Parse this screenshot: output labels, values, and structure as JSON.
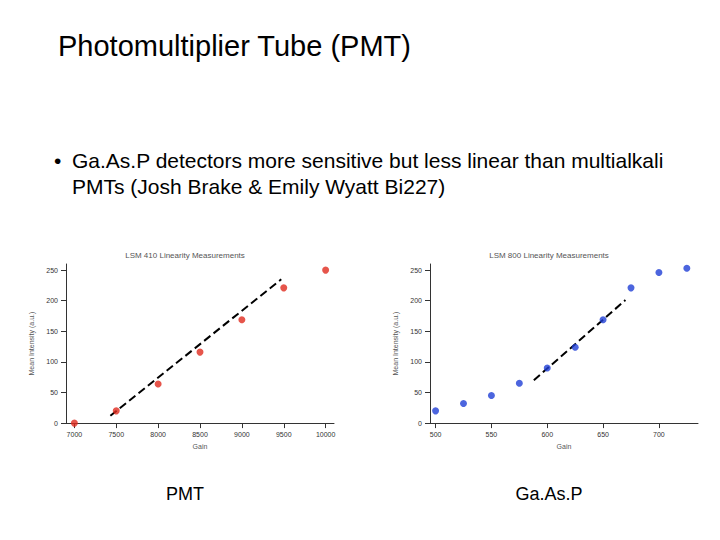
{
  "slide": {
    "title": "Photomultiplier Tube (PMT)",
    "bullet": "Ga.As.P detectors more sensitive but less linear than multialkali PMTs (Josh Brake & Emily Wyatt Bi227)"
  },
  "chart_data": [
    {
      "type": "scatter",
      "title": "LSM 410 Linearity Measurements",
      "caption": "PMT",
      "xlabel": "Gain",
      "ylabel": "Mean Intensity (a.u.)",
      "xlim": [
        6900,
        10100
      ],
      "xticks": [
        7000,
        7500,
        8000,
        8500,
        9000,
        9500,
        10000
      ],
      "ylim": [
        0,
        260
      ],
      "yticks": [
        0,
        50,
        100,
        150,
        200,
        250
      ],
      "grid": false,
      "series": [
        {
          "type": "scatter",
          "color": "#e02a1e",
          "marker": "circle",
          "x": [
            7000,
            7500,
            8000,
            8500,
            9000,
            9500,
            10000
          ],
          "values": [
            0,
            20,
            64,
            116,
            169,
            221,
            250
          ]
        },
        {
          "type": "line",
          "color": "#000000",
          "line_style": "dashed",
          "x": [
            7430,
            9470
          ],
          "values": [
            12,
            235
          ]
        }
      ]
    },
    {
      "type": "scatter",
      "title": "LSM 800 Linearity Measurements",
      "caption": "Ga.As.P",
      "xlabel": "Gain",
      "ylabel": "Mean Intensity (a.u.)",
      "xlim": [
        495,
        735
      ],
      "xticks": [
        500,
        550,
        600,
        650,
        700
      ],
      "ylim": [
        0,
        260
      ],
      "yticks": [
        0,
        50,
        100,
        150,
        200,
        250
      ],
      "grid": false,
      "series": [
        {
          "type": "scatter",
          "color": "#1f3fd6",
          "marker": "circle",
          "x": [
            500,
            525,
            550,
            575,
            600,
            625,
            650,
            675,
            700,
            725
          ],
          "values": [
            20,
            32,
            45,
            65,
            90,
            124,
            169,
            221,
            246,
            253
          ]
        },
        {
          "type": "line",
          "color": "#000000",
          "line_style": "dashed",
          "x": [
            588,
            670
          ],
          "values": [
            70,
            201
          ]
        }
      ]
    }
  ]
}
